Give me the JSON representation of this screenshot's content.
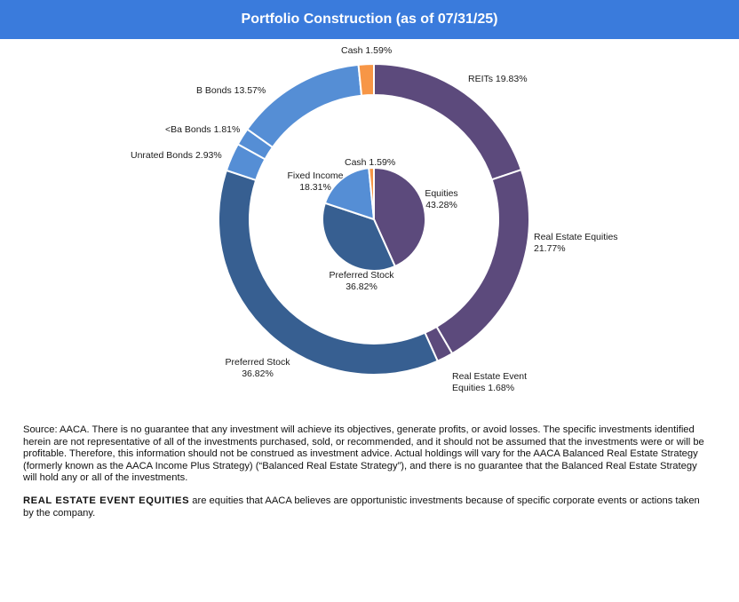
{
  "header": {
    "title": "Portfolio Construction (as of 07/31/25)"
  },
  "colors": {
    "header_bg": "#3a7bdc",
    "equities": "#5c4a7c",
    "preferred": "#375f91",
    "fixed_income": "#558ed5",
    "cash": "#f79646"
  },
  "chart_data": {
    "type": "donut",
    "rings": [
      {
        "name": "outer",
        "segments": [
          {
            "label": "REITs",
            "value": 19.83,
            "value_text": "19.83%",
            "color": "#5c4a7c"
          },
          {
            "label": "Real Estate Equities",
            "value": 21.77,
            "value_text": "21.77%",
            "color": "#5c4a7c"
          },
          {
            "label": "Real Estate Event Equities",
            "value": 1.68,
            "value_text": "1.68%",
            "color": "#5c4a7c"
          },
          {
            "label": "Preferred Stock",
            "value": 36.82,
            "value_text": "36.82%",
            "color": "#375f91"
          },
          {
            "label": "Unrated Bonds",
            "value": 2.93,
            "value_text": "2.93%",
            "color": "#558ed5"
          },
          {
            "label": "<Ba Bonds",
            "value": 1.81,
            "value_text": "1.81%",
            "color": "#558ed5"
          },
          {
            "label": "B Bonds",
            "value": 13.57,
            "value_text": "13.57%",
            "color": "#558ed5"
          },
          {
            "label": "Cash",
            "value": 1.59,
            "value_text": "1.59%",
            "color": "#f79646"
          }
        ]
      },
      {
        "name": "inner",
        "segments": [
          {
            "label": "Equities",
            "value": 43.28,
            "value_text": "43.28%",
            "color": "#5c4a7c"
          },
          {
            "label": "Preferred Stock",
            "value": 36.82,
            "value_text": "36.82%",
            "color": "#375f91"
          },
          {
            "label": "Fixed Income",
            "value": 18.31,
            "value_text": "18.31%",
            "color": "#558ed5"
          },
          {
            "label": "Cash",
            "value": 1.59,
            "value_text": "1.59%",
            "color": "#f79646"
          }
        ]
      }
    ],
    "labels": {
      "outer": [
        {
          "lines": [
            "REITs  19.83%"
          ]
        },
        {
          "lines": [
            "Real Estate Equities",
            "21.77%"
          ]
        },
        {
          "lines": [
            "Real Estate Event",
            "Equities 1.68%"
          ]
        },
        {
          "lines": [
            "Preferred Stock",
            "36.82%"
          ]
        },
        {
          "lines": [
            "Unrated Bonds 2.93%"
          ]
        },
        {
          "lines": [
            "<Ba Bonds 1.81%"
          ]
        },
        {
          "lines": [
            "B Bonds 13.57%"
          ]
        },
        {
          "lines": [
            "Cash 1.59%"
          ]
        }
      ],
      "inner": [
        {
          "lines": [
            "Equities",
            "43.28%"
          ]
        },
        {
          "lines": [
            "Preferred Stock",
            "36.82%"
          ]
        },
        {
          "lines": [
            "Fixed Income",
            "18.31%"
          ]
        },
        {
          "lines": [
            "Cash 1.59%"
          ]
        }
      ]
    }
  },
  "footnotes": {
    "source": "Source: AACA.  There is no guarantee that any investment will achieve its objectives, generate profits, or avoid losses. The specific investments identified herein are not representative of all of the investments purchased, sold, or recommended, and it should not be assumed that the investments were or will be profitable. Therefore, this information should not be construed as investment advice. Actual holdings will vary for the AACA  Balanced Real Estate Strategy (formerly known as the AACA  Income Plus Strategy) (“Balanced Real Estate Strategy”),  and there is no guarantee that the Balanced Real Estate Strategy will hold any  or all of the investments.",
    "definition_term": "REAL  ESTATE  EVENT  EQUITIES",
    "definition_text": "  are equities that AACA  believes are opportunistic investments because of specific corporate events or actions taken by the company."
  }
}
